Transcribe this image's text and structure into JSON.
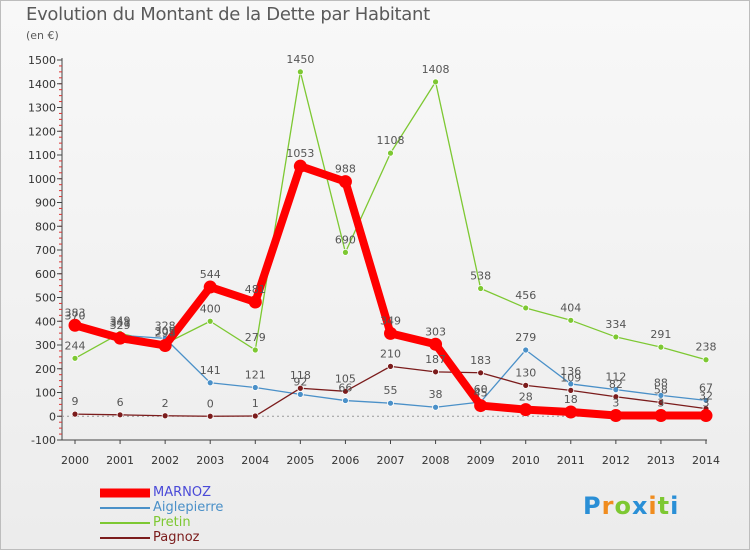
{
  "chart_data": {
    "type": "line",
    "title": "Evolution du Montant de la Dette par Habitant",
    "subtitle": "(en €)",
    "x": [
      "2000",
      "2001",
      "2002",
      "2003",
      "2004",
      "2005",
      "2006",
      "2007",
      "2008",
      "2009",
      "2010",
      "2011",
      "2012",
      "2013",
      "2014"
    ],
    "ylim": [
      -100,
      1500
    ],
    "yticks": [
      -100,
      0,
      100,
      200,
      300,
      400,
      500,
      600,
      700,
      800,
      900,
      1000,
      1100,
      1200,
      1300,
      1400,
      1500
    ],
    "grid": false,
    "legend_position": "bottom-left",
    "series": [
      {
        "name": "MARNOZ",
        "color": "#ff0000",
        "values": [
          383,
          329,
          298,
          544,
          481,
          1053,
          988,
          349,
          303,
          45,
          28,
          18,
          3,
          3,
          3
        ],
        "labels": [
          "383",
          "329",
          "298",
          "544",
          "481",
          "1053",
          "988",
          "349",
          "303",
          "45",
          "28",
          "18",
          "3",
          "3",
          "3"
        ]
      },
      {
        "name": "Aiglepierre",
        "color": "#4a90c8",
        "values": [
          370,
          341,
          328,
          141,
          121,
          92,
          66,
          55,
          38,
          60,
          279,
          136,
          112,
          88,
          67
        ],
        "labels": [
          "370",
          "341",
          "328",
          "141",
          "121",
          "92",
          "66",
          "55",
          "38",
          "60",
          "279",
          "136",
          "112",
          "88",
          "67"
        ]
      },
      {
        "name": "Pretin",
        "color": "#7dc832",
        "values": [
          244,
          349,
          305,
          400,
          279,
          1450,
          690,
          1108,
          1408,
          538,
          456,
          404,
          334,
          291,
          238
        ],
        "labels": [
          "244",
          "349",
          "305",
          "400",
          "279",
          "1450",
          "690",
          "1108",
          "1408",
          "538",
          "456",
          "404",
          "334",
          "291",
          "238"
        ]
      },
      {
        "name": "Pagnoz",
        "color": "#7b1c1c",
        "values": [
          9,
          6,
          2,
          0,
          1,
          118,
          105,
          210,
          187,
          183,
          130,
          109,
          82,
          58,
          32
        ],
        "labels": [
          "9",
          "6",
          "2",
          "0",
          "1",
          "118",
          "105",
          "210",
          "187",
          "183",
          "130",
          "109",
          "82",
          "58",
          "32"
        ]
      }
    ]
  },
  "brand": {
    "letters": [
      "P",
      "r",
      "o",
      "x",
      "i",
      "t",
      "i"
    ],
    "colors": [
      "#2a8fd6",
      "#f08c1e",
      "#7dc832",
      "#2a8fd6",
      "#f08c1e",
      "#7dc832",
      "#2a8fd6"
    ]
  }
}
